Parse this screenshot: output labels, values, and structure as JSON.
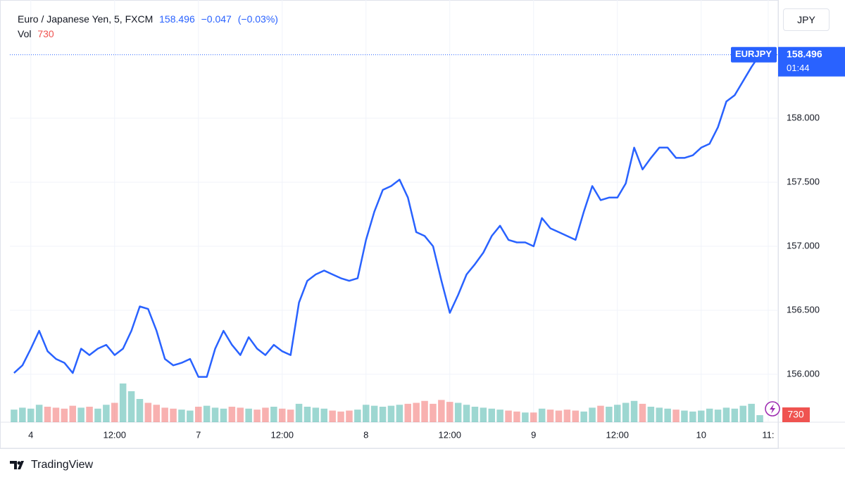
{
  "header": {
    "symbol": "Euro / Japanese Yen, 5, FXCM",
    "change": "−0.047",
    "change_pct": "(−0.03%)",
    "currency": "JPY",
    "countdown": "01:44",
    "brand": "TradingView"
  },
  "chart_data": {
    "type": "line",
    "categories": [
      null,
      null,
      "4",
      null,
      null,
      null,
      null,
      null,
      null,
      null,
      null,
      null,
      "12:00",
      null,
      null,
      null,
      null,
      null,
      null,
      null,
      null,
      null,
      "7",
      null,
      null,
      null,
      null,
      null,
      null,
      null,
      null,
      null,
      "12:00",
      null,
      null,
      null,
      null,
      null,
      null,
      null,
      null,
      null,
      "8",
      null,
      null,
      null,
      null,
      null,
      null,
      null,
      null,
      null,
      "12:00",
      null,
      null,
      null,
      null,
      null,
      null,
      null,
      null,
      null,
      "9",
      null,
      null,
      null,
      null,
      null,
      null,
      null,
      null,
      null,
      "12:00",
      null,
      null,
      null,
      null,
      null,
      null,
      null,
      null,
      null,
      "10",
      null,
      null,
      null,
      null,
      null,
      null,
      null,
      "11:"
    ],
    "series": [
      {
        "name": "EURJPY",
        "color": "#2962ff",
        "values": [
          156.01,
          156.07,
          156.2,
          156.34,
          156.18,
          156.12,
          156.09,
          156.01,
          156.2,
          156.15,
          156.2,
          156.23,
          156.15,
          156.2,
          156.34,
          156.53,
          156.51,
          156.34,
          156.12,
          156.07,
          156.09,
          156.12,
          155.98,
          155.98,
          156.2,
          156.34,
          156.23,
          156.15,
          156.29,
          156.2,
          156.15,
          156.23,
          156.18,
          156.15,
          156.56,
          156.73,
          156.78,
          156.81,
          156.78,
          156.75,
          156.73,
          156.75,
          157.05,
          157.27,
          157.44,
          157.47,
          157.52,
          157.38,
          157.11,
          157.08,
          157.0,
          156.73,
          156.48,
          156.62,
          156.78,
          156.86,
          156.95,
          157.08,
          157.16,
          157.05,
          157.03,
          157.03,
          157.0,
          157.22,
          157.14,
          157.11,
          157.08,
          157.05,
          157.27,
          157.47,
          157.36,
          157.38,
          157.38,
          157.49,
          157.77,
          157.6,
          157.69,
          157.77,
          157.77,
          157.69,
          157.69,
          157.71,
          157.77,
          157.8,
          157.93,
          158.13,
          158.18,
          158.29,
          158.4,
          158.496,
          null
        ]
      }
    ],
    "volume": {
      "name": "Vol",
      "up_color": "#26a69a",
      "down_color": "#ef5350",
      "values": [
        1300,
        1500,
        1400,
        1800,
        1600,
        1500,
        1400,
        1700,
        1500,
        1600,
        1400,
        1800,
        2000,
        4000,
        3200,
        2400,
        2000,
        1800,
        1500,
        1400,
        1300,
        1200,
        1600,
        1700,
        1500,
        1400,
        1600,
        1500,
        1400,
        1300,
        1500,
        1600,
        1400,
        1300,
        1900,
        1600,
        1500,
        1400,
        1200,
        1100,
        1200,
        1300,
        1800,
        1700,
        1600,
        1700,
        1800,
        1900,
        2000,
        2200,
        1900,
        2300,
        2100,
        2000,
        1800,
        1600,
        1500,
        1400,
        1300,
        1200,
        1100,
        1000,
        1000,
        1400,
        1300,
        1200,
        1300,
        1200,
        1100,
        1500,
        1700,
        1600,
        1800,
        2000,
        2200,
        1900,
        1600,
        1500,
        1400,
        1300,
        1200,
        1100,
        1200,
        1400,
        1300,
        1500,
        1400,
        1700,
        1900,
        730,
        null
      ]
    },
    "ylim": [
      155.626,
      158.868
    ],
    "yticks": [
      {
        "value": 156,
        "label": "156.000"
      },
      {
        "value": 156.5,
        "label": "156.500"
      },
      {
        "value": 157,
        "label": "157.000"
      },
      {
        "value": 157.5,
        "label": "157.500"
      },
      {
        "value": 158,
        "label": "158.000"
      }
    ],
    "grid": true
  }
}
